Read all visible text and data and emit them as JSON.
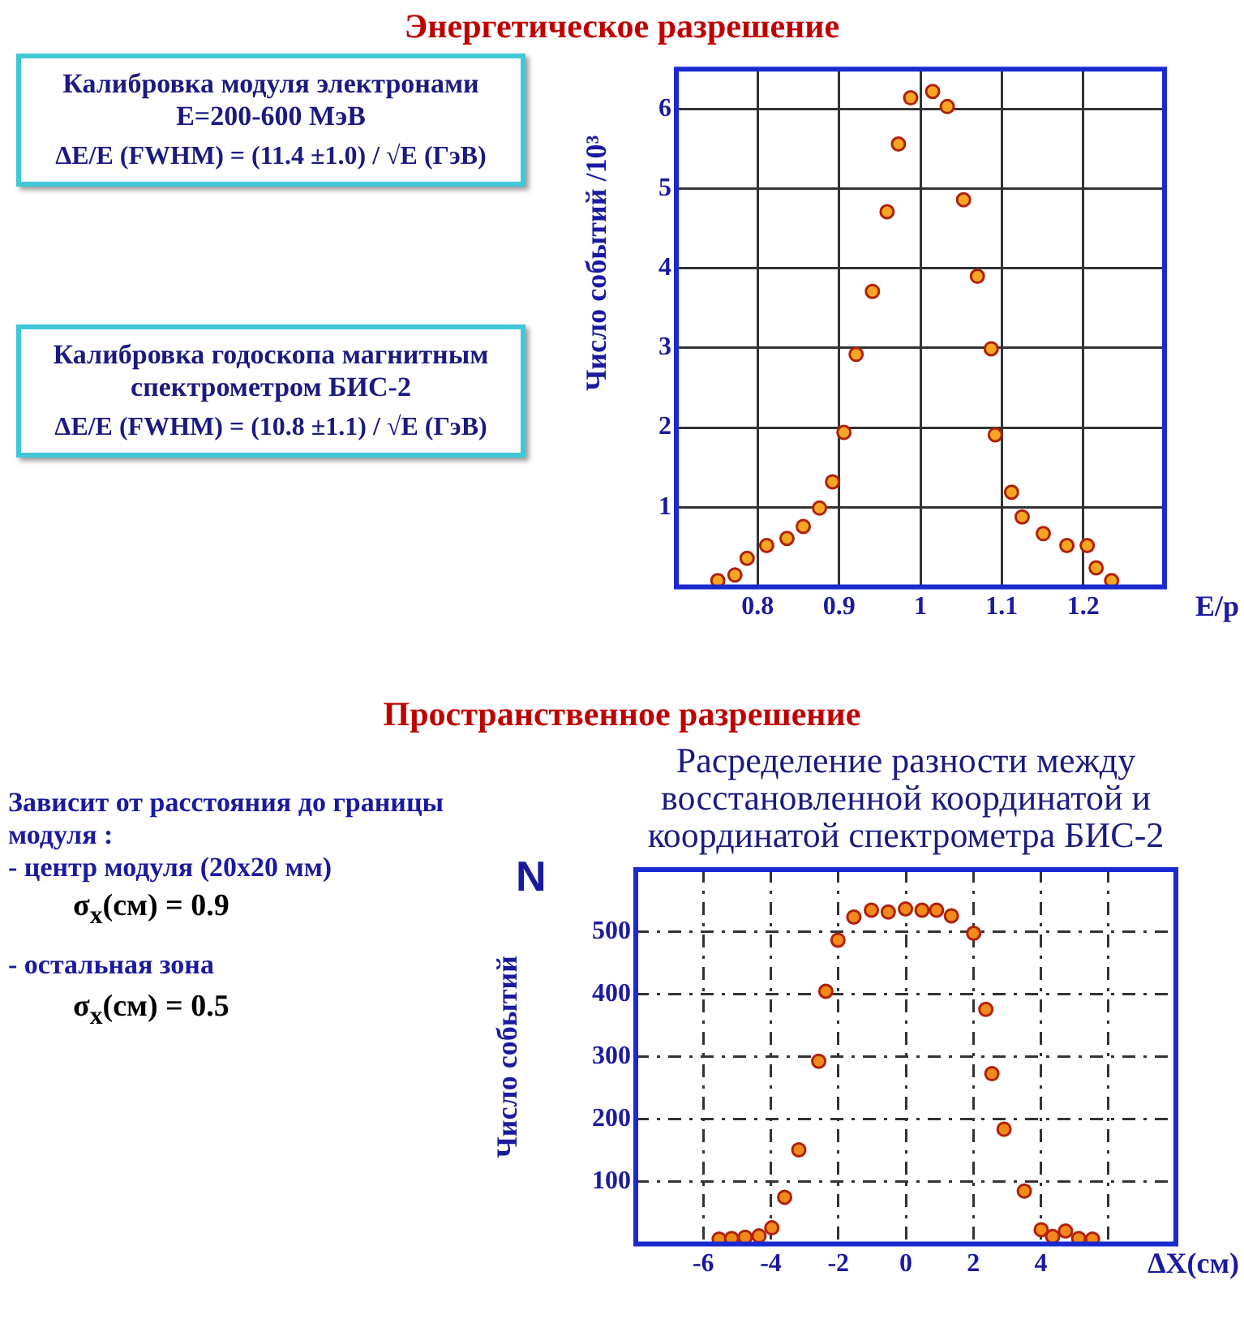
{
  "chart_data": [
    {
      "type": "scatter",
      "title": "Энергетическое разрешение",
      "xlabel": "E/p",
      "ylabel": "Число событий /10³",
      "annotations": [
        "Калибровка модуля электронами E=200-600 МэВ",
        "ΔE/E (FWHM) = (11.4 ±1.0) / √E (ГэВ)",
        "Калибровка годоскопа магнитным спектрометром БИС-2",
        "ΔE/E (FWHM) = (10.8 ±1.1) / √E (ГэВ)"
      ],
      "x": [
        0.751,
        0.772,
        0.787,
        0.811,
        0.836,
        0.856,
        0.876,
        0.892,
        0.906,
        0.921,
        0.941,
        0.959,
        0.973,
        0.988,
        1.015,
        1.033,
        1.053,
        1.07,
        1.087,
        1.092,
        1.112,
        1.125,
        1.151,
        1.18,
        1.205,
        1.216,
        1.235
      ],
      "series": [
        {
          "color": "#f5a623",
          "values": [
            0.08,
            0.15,
            0.36,
            0.52,
            0.61,
            0.76,
            0.99,
            1.32,
            1.94,
            2.92,
            3.71,
            4.71,
            5.56,
            6.14,
            6.22,
            6.03,
            4.86,
            3.9,
            2.99,
            1.91,
            1.19,
            0.88,
            0.67,
            0.52,
            0.52,
            0.24,
            0.08
          ]
        }
      ],
      "xlim": [
        0.7,
        1.3
      ],
      "xticks": [
        0.8,
        0.9,
        1.0,
        1.1,
        1.2
      ],
      "ylim": [
        0,
        6.5
      ],
      "yticks": [
        1,
        2,
        3,
        4,
        5,
        6
      ],
      "grid": true,
      "marker": "circle"
    },
    {
      "type": "scatter",
      "title": "Пространственное разрешение",
      "subtitle": "Расределение разности между восстановленной координатой и координатой спектрометра БИС-2",
      "xlabel": "ΔX(см)",
      "ylabel": "Число событий",
      "annotations": [
        "Зависит от расстояния до границы модуля :",
        "- центр модуля (20x20 мм)",
        "σ$_{x}$(см) = 0.9",
        "- остальная зона",
        "σ$_{x}$(см) = 0.5",
        "N"
      ],
      "x": [
        -5.53,
        -5.16,
        -4.76,
        -4.35,
        -3.97,
        -3.59,
        -3.17,
        -2.58,
        -2.37,
        -2.01,
        -1.54,
        -1.02,
        -0.52,
        -0.01,
        0.48,
        0.91,
        1.35,
        2.01,
        2.37,
        2.55,
        2.91,
        3.51,
        4.01,
        4.35,
        4.73,
        5.12,
        5.53
      ],
      "series": [
        {
          "color": "#f08a1a",
          "values": [
            8,
            9,
            11,
            13,
            26,
            75,
            151,
            293,
            405,
            487,
            524,
            535,
            532,
            537,
            535,
            535,
            526,
            498,
            376,
            273,
            184,
            85,
            23,
            12,
            21,
            9,
            8
          ]
        }
      ],
      "xlim": [
        -8,
        8
      ],
      "xticks": [
        -6,
        -4,
        -2,
        0,
        2,
        4,
        {
          "value": 6,
          "label": null
        }
      ],
      "ylim": [
        0,
        600
      ],
      "yticks": [
        100,
        200,
        300,
        400,
        500
      ],
      "grid": true,
      "marker": "circle"
    }
  ]
}
